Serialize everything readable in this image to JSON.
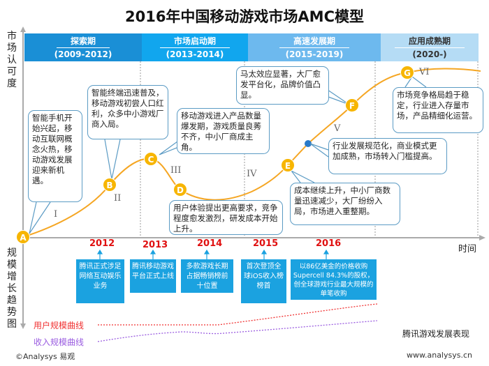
{
  "title": "2016年中国移动游戏市场AMC模型",
  "y_axis_label": "市场认可度",
  "x_axis_label": "时间",
  "lower_y_label": "规模增长趋势图",
  "phases": [
    {
      "name": "探索期",
      "years": "(2009-2012)",
      "color": "#1a8fd6"
    },
    {
      "name": "市场启动期",
      "years": "(2013-2014)",
      "color": "#11a6ee"
    },
    {
      "name": "高速发展期",
      "years": "(2015-2019)",
      "color": "#6db9ee"
    },
    {
      "name": "应用成熟期",
      "years": "(2020-)",
      "color": "#b5dcf5"
    }
  ],
  "points": [
    "A",
    "B",
    "C",
    "D",
    "E",
    "F",
    "G"
  ],
  "stages": [
    "I",
    "II",
    "III",
    "IV",
    "V",
    "VI"
  ],
  "bubbles": {
    "a": "智能手机开始兴起，移动互联网概念火热，移动游戏发展迎来新机遇。",
    "b": "智能终端迅速普及，移动游戏初尝人口红利，众多中小游戏厂商入局。",
    "c": "移动游戏进入产品数量爆发期，游戏质量良莠不齐，中小厂商成主角。",
    "d": "用户体验提出更高要求，竞争程度愈发激烈，研发成本开始上升。",
    "e": "成本继续上升，中小厂商数量迅速减少，大厂纷纷入局，市场进入重整期。",
    "dot": "行业发展规范化，商业模式更加成熟，市场转入门槛提高。",
    "f": "马太效应显著，大厂愈发平台化，品牌价值凸显。",
    "g": "市场竞争格局趋于稳定，行业进入存量市场，产品精细化运营。"
  },
  "tencent": {
    "title": "腾讯游戏发展表现",
    "events": [
      {
        "year": "2012",
        "text": "腾讯正式涉足网络互动娱乐业务"
      },
      {
        "year": "2013",
        "text": "腾讯移动游戏平台正式上线"
      },
      {
        "year": "2014",
        "text": "多款游戏长期占据畅销榜前十位置"
      },
      {
        "year": "2015",
        "text": "首次登顶全球iOS收入榜榜首"
      },
      {
        "year": "2016",
        "text": "以86亿美金的价格收购Supercell 84.3%的股权，创全球游戏行业最大规模的单笔收购"
      }
    ]
  },
  "legend": {
    "user": "用户规模曲线",
    "revenue": "收入规模曲线",
    "user_color": "#f03030",
    "revenue_color": "#9a5ce0"
  },
  "curve_color": "#f5a623",
  "footer": {
    "left": "©Analysys 易观",
    "right": "www.analysys.cn"
  }
}
